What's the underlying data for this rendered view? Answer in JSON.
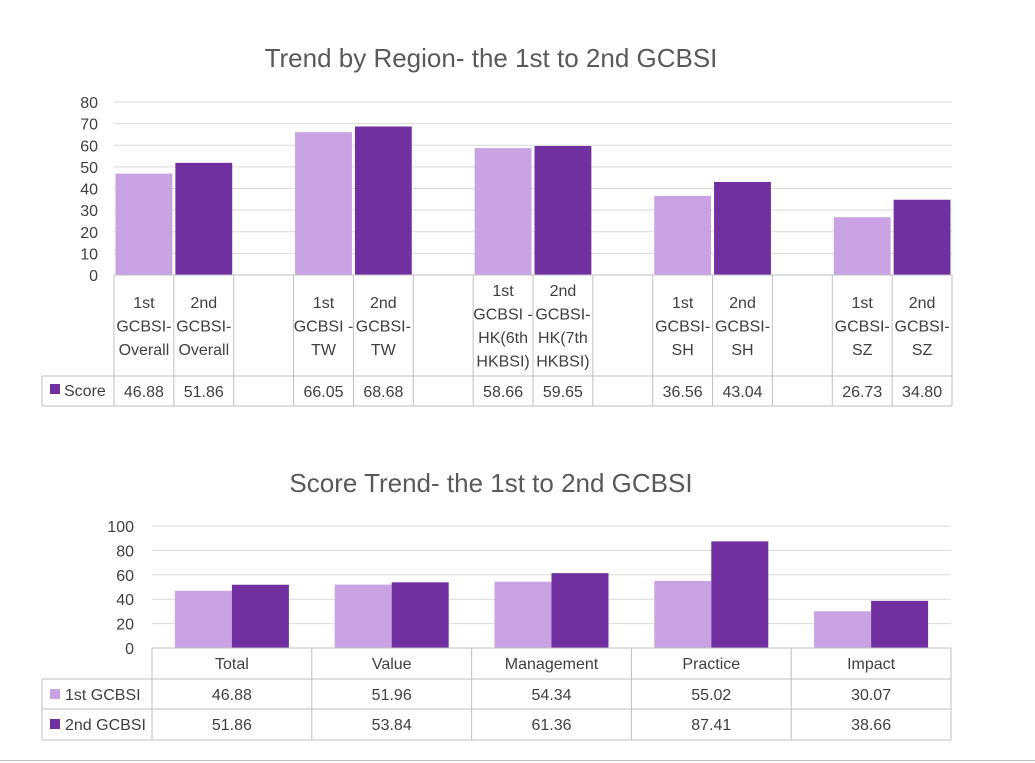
{
  "colors": {
    "first": "#c8a2e2",
    "second": "#7030a0",
    "gridline": "#d9d9d9",
    "table_border": "#bfbfbf",
    "text": "#404040",
    "title": "#595959"
  },
  "chart_data": [
    {
      "type": "bar",
      "title": "Trend by Region- the 1st to 2nd GCBSI",
      "ylim": [
        0,
        80
      ],
      "yticks": [
        0,
        10,
        20,
        30,
        40,
        50,
        60,
        70,
        80
      ],
      "grid": true,
      "categories": [
        [
          "1st",
          "GCBSI-",
          "Overall"
        ],
        [
          "2nd",
          "GCBSI-",
          "Overall"
        ],
        [],
        [
          "1st",
          "GCBSI -",
          "TW"
        ],
        [
          "2nd",
          "GCBSI-",
          "TW"
        ],
        [],
        [
          "1st",
          "GCBSI -",
          "HK(6th",
          "HKBSI)"
        ],
        [
          "2nd",
          "GCBSI-",
          "HK(7th",
          "HKBSI)"
        ],
        [],
        [
          "1st",
          "GCBSI-",
          "SH"
        ],
        [
          "2nd",
          "GCBSI-",
          "SH"
        ],
        [],
        [
          "1st",
          "GCBSI-",
          "SZ"
        ],
        [
          "2nd",
          "GCBSI-",
          "SZ"
        ]
      ],
      "series": [
        {
          "name": "Score",
          "values": [
            46.88,
            51.86,
            null,
            66.05,
            68.68,
            null,
            58.66,
            59.65,
            null,
            36.56,
            43.04,
            null,
            26.73,
            34.8
          ],
          "labels": [
            "46.88",
            "51.86",
            "",
            "66.05",
            "68.68",
            "",
            "58.66",
            "59.65",
            "",
            "36.56",
            "43.04",
            "",
            "26.73",
            "34.80"
          ],
          "point_colors": [
            "first",
            "second",
            "",
            "first",
            "second",
            "",
            "first",
            "second",
            "",
            "first",
            "second",
            "",
            "first",
            "second"
          ]
        }
      ]
    },
    {
      "type": "bar",
      "title": "Score Trend- the 1st to 2nd GCBSI",
      "ylim": [
        0,
        100
      ],
      "yticks": [
        0,
        20,
        40,
        60,
        80,
        100
      ],
      "grid": true,
      "categories": [
        "Total",
        "Value",
        "Management",
        "Practice",
        "Impact"
      ],
      "series": [
        {
          "name": "1st GCBSI",
          "values": [
            46.88,
            51.96,
            54.34,
            55.02,
            30.07
          ],
          "labels": [
            "46.88",
            "51.96",
            "54.34",
            "55.02",
            "30.07"
          ]
        },
        {
          "name": "2nd GCBSI",
          "values": [
            51.86,
            53.84,
            61.36,
            87.41,
            38.66
          ],
          "labels": [
            "51.86",
            "53.84",
            "61.36",
            "87.41",
            "38.66"
          ]
        }
      ]
    }
  ]
}
